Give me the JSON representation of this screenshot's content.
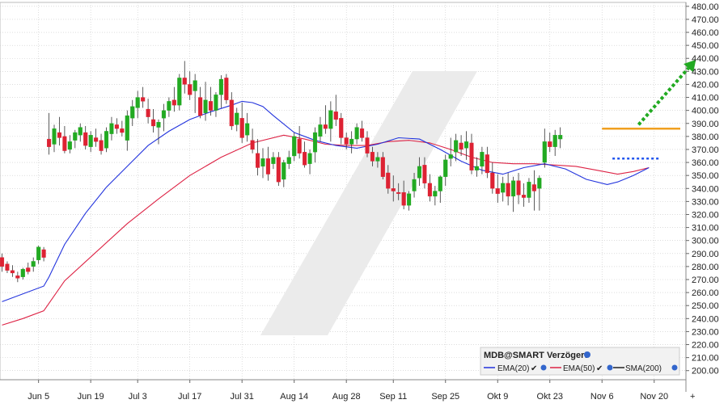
{
  "chart_data": {
    "type": "candlestick",
    "instrument_label": "MDB@SMART Verzögert",
    "y_axis": {
      "ticks": [
        "480.00",
        "470.00",
        "460.00",
        "450.00",
        "440.00",
        "430.00",
        "420.00",
        "410.00",
        "400.00",
        "390.00",
        "380.00",
        "370.00",
        "360.00",
        "350.00",
        "340.00",
        "330.00",
        "320.00",
        "310.00",
        "300.00",
        "290.00",
        "280.00",
        "270.00",
        "260.00",
        "250.00",
        "240.00",
        "230.00",
        "220.00",
        "210.00",
        "200.00"
      ],
      "min": 193,
      "max": 483
    },
    "x_axis": {
      "ticks": [
        {
          "label": "Jun 5",
          "index": 7
        },
        {
          "label": "Jun 19",
          "index": 17
        },
        {
          "label": "Jul 3",
          "index": 26
        },
        {
          "label": "Jul 17",
          "index": 36
        },
        {
          "label": "Jul 31",
          "index": 46
        },
        {
          "label": "Aug 14",
          "index": 56
        },
        {
          "label": "Aug 28",
          "index": 66
        },
        {
          "label": "Sep 11",
          "index": 75
        },
        {
          "label": "Sep 25",
          "index": 85
        },
        {
          "label": "Okt 9",
          "index": 95
        },
        {
          "label": "Okt 23",
          "index": 105
        },
        {
          "label": "Nov 6",
          "index": 115
        },
        {
          "label": "Nov 20",
          "index": 125
        }
      ]
    },
    "candles": [
      [
        287,
        290,
        276,
        280
      ],
      [
        282,
        284,
        275,
        277
      ],
      [
        277,
        281,
        272,
        275
      ],
      [
        273,
        276,
        268,
        271
      ],
      [
        272,
        279,
        270,
        278
      ],
      [
        279,
        283,
        274,
        276
      ],
      [
        280,
        287,
        276,
        284
      ],
      [
        285,
        296,
        282,
        295
      ],
      [
        293,
        295,
        284,
        287
      ],
      [
        378,
        398,
        366,
        372
      ],
      [
        374,
        389,
        368,
        386
      ],
      [
        383,
        395,
        373,
        379
      ],
      [
        380,
        388,
        367,
        369
      ],
      [
        370,
        381,
        367,
        376
      ],
      [
        377,
        385,
        371,
        383
      ],
      [
        381,
        390,
        376,
        387
      ],
      [
        383,
        388,
        370,
        373
      ],
      [
        372,
        384,
        368,
        381
      ],
      [
        379,
        386,
        372,
        376
      ],
      [
        377,
        382,
        366,
        369
      ],
      [
        371,
        387,
        368,
        384
      ],
      [
        382,
        395,
        377,
        390
      ],
      [
        389,
        394,
        382,
        386
      ],
      [
        386,
        392,
        380,
        383
      ],
      [
        377,
        400,
        369,
        396
      ],
      [
        394,
        408,
        388,
        403
      ],
      [
        402,
        415,
        394,
        410
      ],
      [
        410,
        418,
        402,
        407
      ],
      [
        401,
        409,
        390,
        395
      ],
      [
        393,
        401,
        383,
        388
      ],
      [
        387,
        393,
        374,
        391
      ],
      [
        394,
        405,
        384,
        400
      ],
      [
        400,
        410,
        395,
        407
      ],
      [
        408,
        418,
        399,
        404
      ],
      [
        404,
        428,
        400,
        425
      ],
      [
        425,
        438,
        413,
        420
      ],
      [
        420,
        430,
        408,
        412
      ],
      [
        415,
        428,
        398,
        423
      ],
      [
        410,
        418,
        394,
        396
      ],
      [
        398,
        422,
        392,
        408
      ],
      [
        407,
        418,
        396,
        400
      ],
      [
        400,
        414,
        395,
        412
      ],
      [
        412,
        427,
        402,
        424
      ],
      [
        425,
        428,
        405,
        408
      ],
      [
        408,
        414,
        385,
        388
      ],
      [
        389,
        402,
        384,
        398
      ],
      [
        394,
        406,
        375,
        379
      ],
      [
        381,
        398,
        376,
        390
      ],
      [
        377,
        386,
        367,
        370
      ],
      [
        367,
        378,
        350,
        356
      ],
      [
        357,
        371,
        348,
        363
      ],
      [
        363,
        372,
        346,
        351
      ],
      [
        359,
        368,
        355,
        364
      ],
      [
        364,
        368,
        342,
        345
      ],
      [
        347,
        362,
        341,
        360
      ],
      [
        359,
        369,
        355,
        364
      ],
      [
        365,
        383,
        361,
        380
      ],
      [
        378,
        388,
        363,
        367
      ],
      [
        368,
        376,
        356,
        358
      ],
      [
        359,
        370,
        351,
        367
      ],
      [
        368,
        387,
        360,
        383
      ],
      [
        380,
        395,
        376,
        389
      ],
      [
        389,
        404,
        382,
        386
      ],
      [
        386,
        407,
        376,
        400
      ],
      [
        399,
        412,
        388,
        393
      ],
      [
        394,
        398,
        374,
        379
      ],
      [
        379,
        383,
        370,
        374
      ],
      [
        374,
        384,
        367,
        378
      ],
      [
        378,
        390,
        374,
        387
      ],
      [
        386,
        392,
        376,
        379
      ],
      [
        379,
        384,
        364,
        367
      ],
      [
        368,
        372,
        357,
        361
      ],
      [
        361,
        368,
        356,
        364
      ],
      [
        364,
        368,
        347,
        349
      ],
      [
        352,
        358,
        336,
        340
      ],
      [
        340,
        350,
        330,
        338
      ],
      [
        337,
        344,
        331,
        336
      ],
      [
        337,
        346,
        324,
        327
      ],
      [
        327,
        338,
        323,
        336
      ],
      [
        338,
        352,
        333,
        347
      ],
      [
        348,
        364,
        342,
        357
      ],
      [
        358,
        364,
        340,
        344
      ],
      [
        344,
        351,
        330,
        334
      ],
      [
        334,
        342,
        327,
        338
      ],
      [
        338,
        350,
        329,
        349
      ],
      [
        349,
        366,
        342,
        362
      ],
      [
        363,
        379,
        357,
        366
      ],
      [
        368,
        382,
        361,
        377
      ],
      [
        375,
        381,
        365,
        370
      ],
      [
        371,
        384,
        362,
        376
      ],
      [
        375,
        382,
        351,
        354
      ],
      [
        354,
        364,
        349,
        357
      ],
      [
        357,
        372,
        351,
        368
      ],
      [
        366,
        372,
        348,
        352
      ],
      [
        352,
        360,
        336,
        340
      ],
      [
        340,
        351,
        329,
        336
      ],
      [
        337,
        349,
        330,
        344
      ],
      [
        344,
        352,
        327,
        334
      ],
      [
        334,
        349,
        322,
        346
      ],
      [
        346,
        352,
        328,
        335
      ],
      [
        335,
        344,
        326,
        333
      ],
      [
        333,
        348,
        329,
        345
      ],
      [
        343,
        354,
        323,
        338
      ],
      [
        340,
        350,
        323,
        348
      ],
      [
        360,
        386,
        356,
        376
      ],
      [
        376,
        383,
        368,
        372
      ],
      [
        372,
        385,
        365,
        381
      ],
      [
        378,
        387,
        371,
        381
      ]
    ],
    "series": [
      {
        "name": "EMA(20)",
        "color": "#2233dd"
      },
      {
        "name": "EMA(50)",
        "color": "#dd2244"
      },
      {
        "name": "SMA(200)",
        "color": "#222222"
      }
    ],
    "ema20": [
      [
        0,
        253
      ],
      [
        8,
        265
      ],
      [
        9,
        272
      ],
      [
        12,
        297
      ],
      [
        16,
        321
      ],
      [
        20,
        341
      ],
      [
        24,
        357
      ],
      [
        28,
        373
      ],
      [
        32,
        384
      ],
      [
        36,
        393
      ],
      [
        40,
        399
      ],
      [
        44,
        404
      ],
      [
        46,
        407
      ],
      [
        48,
        406
      ],
      [
        50,
        403
      ],
      [
        52,
        396
      ],
      [
        56,
        383
      ],
      [
        60,
        377
      ],
      [
        64,
        373
      ],
      [
        68,
        371
      ],
      [
        72,
        374
      ],
      [
        76,
        379
      ],
      [
        80,
        378
      ],
      [
        84,
        370
      ],
      [
        88,
        361
      ],
      [
        92,
        354
      ],
      [
        96,
        351
      ],
      [
        100,
        356
      ],
      [
        104,
        359
      ],
      [
        108,
        355
      ],
      [
        112,
        347
      ],
      [
        116,
        343
      ],
      [
        118,
        345
      ],
      [
        121,
        350
      ],
      [
        124,
        356
      ]
    ],
    "ema50": [
      [
        0,
        235
      ],
      [
        4,
        240
      ],
      [
        8,
        246
      ],
      [
        12,
        269
      ],
      [
        18,
        291
      ],
      [
        24,
        313
      ],
      [
        30,
        332
      ],
      [
        36,
        350
      ],
      [
        42,
        364
      ],
      [
        48,
        375
      ],
      [
        54,
        381
      ],
      [
        58,
        378
      ],
      [
        62,
        374
      ],
      [
        66,
        373
      ],
      [
        70,
        373
      ],
      [
        74,
        376
      ],
      [
        78,
        377
      ],
      [
        82,
        375
      ],
      [
        86,
        370
      ],
      [
        90,
        364
      ],
      [
        94,
        360
      ],
      [
        98,
        359
      ],
      [
        102,
        359
      ],
      [
        106,
        358
      ],
      [
        110,
        357
      ],
      [
        114,
        354
      ],
      [
        118,
        351
      ],
      [
        121,
        353
      ],
      [
        124,
        356
      ]
    ],
    "annotations": [
      {
        "type": "resistance_line",
        "value": 386,
        "from": 115,
        "to": 130,
        "color": "#f0a020"
      },
      {
        "type": "support_line",
        "value": 363,
        "from": 117,
        "to": 126,
        "color": "#2255ee",
        "style": "dotted"
      },
      {
        "type": "arrow",
        "from": [
          122,
          389
        ],
        "to": [
          133,
          439
        ],
        "color": "#22aa22",
        "style": "dotted"
      }
    ],
    "colors": {
      "up": "#22aa22",
      "down": "#dd2233",
      "grid": "#c8c8c8",
      "watermark": "#e8e8e8"
    }
  }
}
